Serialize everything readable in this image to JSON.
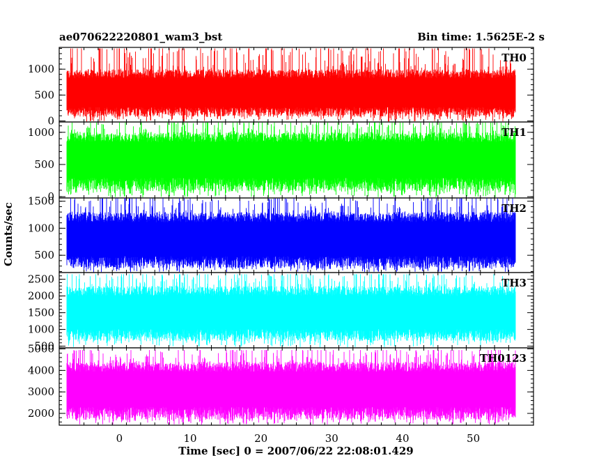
{
  "header": {
    "title_left": "ae070622220801_wam3_bst",
    "title_right": "Bin time: 1.5625E-2 s"
  },
  "axes": {
    "xlabel": "Time [sec] 0 = 2007/06/22 22:08:01.429",
    "ylabel": "Counts/sec"
  },
  "chart_data": {
    "type": "line",
    "title": "ae070622220801_wam3_bst",
    "subtitle": "Bin time: 1.5625E-2 s",
    "xlabel": "Time [sec] 0 = 2007/06/22 22:08:01.429",
    "ylabel": "Counts/sec",
    "xlim": [
      -8.5,
      58.5
    ],
    "data_x_range": [
      -7.5,
      56.0
    ],
    "x_ticks": [
      0,
      10,
      20,
      30,
      40,
      50
    ],
    "grid": false,
    "panels": [
      {
        "name": "TH0",
        "color": "#ff0000",
        "ylim": [
          -20,
          1420
        ],
        "y_ticks": [
          0,
          500,
          1000
        ],
        "typical_min": 80,
        "typical_max": 1000,
        "mean": 500,
        "spike_max": 1400
      },
      {
        "name": "TH1",
        "color": "#00ff00",
        "ylim": [
          -20,
          1160
        ],
        "y_ticks": [
          0,
          500,
          1000
        ],
        "typical_min": 80,
        "typical_max": 1000,
        "mean": 560,
        "spike_max": 1150
      },
      {
        "name": "TH2",
        "color": "#0000ff",
        "ylim": [
          180,
          1560
        ],
        "y_ticks": [
          500,
          1000,
          1500
        ],
        "typical_min": 260,
        "typical_max": 1300,
        "mean": 760,
        "spike_max": 1550
      },
      {
        "name": "TH3",
        "color": "#00ffff",
        "ylim": [
          450,
          2700
        ],
        "y_ticks": [
          500,
          1000,
          1500,
          2000,
          2500
        ],
        "typical_min": 650,
        "typical_max": 2300,
        "mean": 1450,
        "spike_max": 2650
      },
      {
        "name": "TH0123",
        "color": "#ff00ff",
        "ylim": [
          1450,
          5050
        ],
        "y_ticks": [
          2000,
          3000,
          4000,
          5000
        ],
        "typical_min": 1700,
        "typical_max": 4400,
        "mean": 3050,
        "spike_max": 4950
      }
    ]
  }
}
